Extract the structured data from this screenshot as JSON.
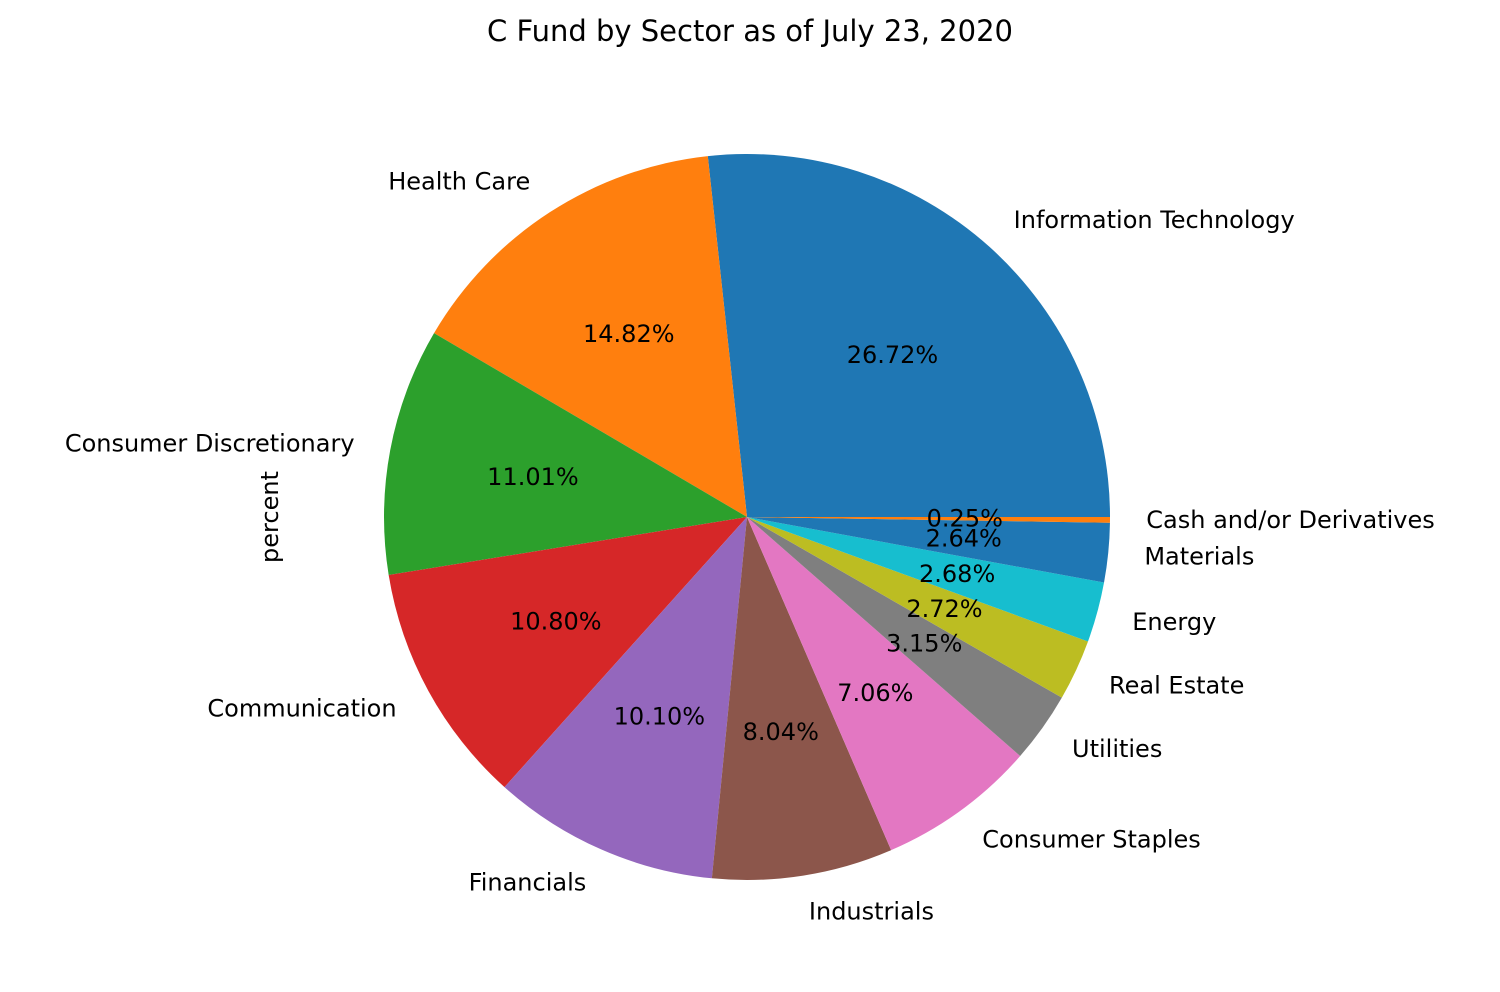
{
  "chart_data": {
    "type": "pie",
    "title": "C Fund by Sector as of July 23, 2020",
    "ylabel": "percent",
    "xlabel": "",
    "start_angle": 0,
    "direction": "counterclockwise",
    "categories": [
      "Information Technology",
      "Health Care",
      "Consumer Discretionary",
      "Communication",
      "Financials",
      "Industrials",
      "Consumer Staples",
      "Utilities",
      "Real Estate",
      "Energy",
      "Materials",
      "Cash and/or Derivatives"
    ],
    "values": [
      26.72,
      14.82,
      11.01,
      10.8,
      10.1,
      8.04,
      7.06,
      3.15,
      2.72,
      2.68,
      2.64,
      0.25
    ],
    "value_labels": [
      "26.72%",
      "14.82%",
      "11.01%",
      "10.80%",
      "10.10%",
      "8.04%",
      "7.06%",
      "3.15%",
      "2.72%",
      "2.68%",
      "2.64%",
      "0.25%"
    ],
    "colors": [
      "#1f77b4",
      "#ff7f0e",
      "#2ca02c",
      "#d62728",
      "#9467bd",
      "#8c564b",
      "#e377c2",
      "#7f7f7f",
      "#bcbd22",
      "#17becf",
      "#1f77b4",
      "#ff7f0e"
    ]
  }
}
